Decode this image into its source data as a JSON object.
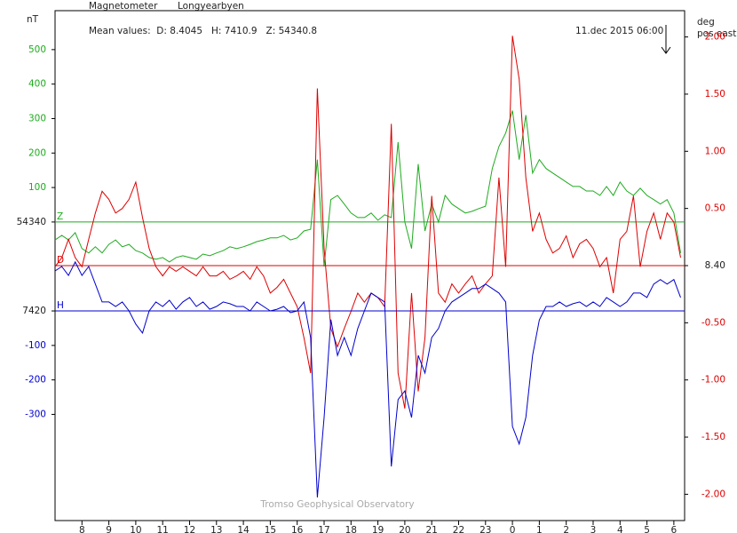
{
  "chart_data": {
    "type": "line",
    "title": "Magnetometer",
    "subtitle": "Longyearbyen",
    "mean_values": "Mean values:  D: 8.4045   H: 7410.9   Z: 54340.8",
    "timestamp": "11.dec 2015 06:00",
    "ylabel": "nT",
    "y2label": "deg",
    "y2label_note": "pos east",
    "credit": "Tromso Geophysical Observatory",
    "xlim": [
      7,
      30.4
    ],
    "xticks": [
      8,
      9,
      10,
      11,
      12,
      13,
      14,
      15,
      16,
      17,
      18,
      19,
      20,
      21,
      22,
      23,
      {
        "value": 24,
        "label": "0"
      },
      {
        "value": 25,
        "label": "1"
      },
      {
        "value": 26,
        "label": "2"
      },
      {
        "value": 27,
        "label": "3"
      },
      {
        "value": 28,
        "label": "4"
      },
      {
        "value": 29,
        "label": "5"
      },
      {
        "value": 30,
        "label": "6"
      }
    ],
    "ylim": [
      -866,
      613
    ],
    "yticks": [
      500,
      400,
      300,
      200,
      100,
      {
        "value": 0,
        "label": "54340"
      },
      {
        "value": -258,
        "label": "7420"
      },
      {
        "value": -358,
        "label": "-100"
      },
      {
        "value": -458,
        "label": "-200"
      },
      {
        "value": -558,
        "label": "-300"
      }
    ],
    "y2lim": [
      -2.23,
      2.23
    ],
    "y2ticks": [
      {
        "value": 2,
        "label": "2.00"
      },
      {
        "value": 1.5,
        "label": "1.50"
      },
      {
        "value": 1,
        "label": "1.00"
      },
      {
        "value": 0.5,
        "label": "0.50"
      },
      {
        "value": 0,
        "label": "8.40"
      },
      {
        "value": -0.5,
        "label": "-0.50"
      },
      {
        "value": -1,
        "label": "-1.00"
      },
      {
        "value": -1.5,
        "label": "-1.50"
      },
      {
        "value": -2,
        "label": "-2.00"
      }
    ],
    "x": [
      7,
      7.25,
      7.5,
      7.75,
      8,
      8.25,
      8.5,
      8.75,
      9,
      9.25,
      9.5,
      9.75,
      10,
      10.25,
      10.5,
      10.75,
      11,
      11.25,
      11.5,
      11.75,
      12,
      12.25,
      12.5,
      12.75,
      13,
      13.25,
      13.5,
      13.75,
      14,
      14.25,
      14.5,
      14.75,
      15,
      15.25,
      15.5,
      15.75,
      16,
      16.25,
      16.5,
      16.75,
      17,
      17.25,
      17.5,
      17.75,
      18,
      18.25,
      18.5,
      18.75,
      19,
      19.25,
      19.5,
      19.75,
      20,
      20.25,
      20.5,
      20.75,
      21,
      21.25,
      21.5,
      21.75,
      22,
      22.25,
      22.5,
      22.75,
      23,
      23.25,
      23.5,
      23.75,
      24,
      24.25,
      24.5,
      24.75,
      25,
      25.25,
      25.5,
      25.75,
      26,
      26.25,
      26.5,
      26.75,
      27,
      27.25,
      27.5,
      27.75,
      28,
      28.25,
      28.5,
      28.75,
      29,
      29.25,
      29.5,
      29.75,
      30,
      30.25
    ],
    "series": [
      {
        "name": "Z",
        "color": "#1faa1f",
        "axis": "y",
        "baseline": 0,
        "values": [
          -52,
          -39,
          -52,
          -31,
          -77,
          -90,
          -72,
          -90,
          -65,
          -52,
          -72,
          -65,
          -83,
          -90,
          -103,
          -108,
          -103,
          -116,
          -103,
          -98,
          -103,
          -108,
          -93,
          -98,
          -90,
          -83,
          -72,
          -77,
          -72,
          -65,
          -57,
          -52,
          -46,
          -46,
          -39,
          -52,
          -46,
          -26,
          -21,
          181,
          -129,
          65,
          77,
          52,
          26,
          13,
          13,
          26,
          5,
          21,
          13,
          232,
          0,
          -77,
          168,
          -26,
          52,
          0,
          77,
          52,
          39,
          26,
          31,
          39,
          46,
          155,
          219,
          258,
          323,
          181,
          310,
          142,
          181,
          155,
          142,
          129,
          116,
          103,
          103,
          90,
          90,
          77,
          103,
          77,
          116,
          90,
          77,
          98,
          77,
          65,
          52,
          65,
          26,
          -90
        ]
      },
      {
        "name": "D",
        "color": "#dd0000",
        "axis": "y2",
        "baseline": 0,
        "values": [
          -0.01,
          0.07,
          0.23,
          0.07,
          -0.01,
          0.23,
          0.46,
          0.65,
          0.58,
          0.46,
          0.5,
          0.58,
          0.73,
          0.42,
          0.15,
          -0.01,
          -0.09,
          -0.01,
          -0.05,
          -0.01,
          -0.05,
          -0.09,
          -0.01,
          -0.09,
          -0.09,
          -0.05,
          -0.12,
          -0.09,
          -0.05,
          -0.12,
          -0.01,
          -0.09,
          -0.24,
          -0.19,
          -0.12,
          -0.24,
          -0.36,
          -0.63,
          -0.94,
          1.55,
          0.15,
          -0.55,
          -0.71,
          -0.55,
          -0.4,
          -0.24,
          -0.32,
          -0.24,
          -0.28,
          -0.36,
          1.24,
          -0.94,
          -1.25,
          -0.24,
          -1.1,
          -0.63,
          0.61,
          -0.24,
          -0.32,
          -0.16,
          -0.24,
          -0.16,
          -0.09,
          -0.24,
          -0.16,
          -0.09,
          0.77,
          -0.01,
          2.01,
          1.63,
          0.77,
          0.3,
          0.46,
          0.23,
          0.11,
          0.15,
          0.26,
          0.07,
          0.19,
          0.23,
          0.15,
          -0.01,
          0.07,
          -0.24,
          0.23,
          0.3,
          0.61,
          -0.01,
          0.3,
          0.46,
          0.23,
          0.46,
          0.38,
          0.07
        ]
      },
      {
        "name": "H",
        "color": "#0000cc",
        "axis": "y",
        "baseline": -258,
        "values": [
          -142,
          -129,
          -155,
          -116,
          -155,
          -129,
          -180,
          -232,
          -232,
          -245,
          -232,
          -258,
          -296,
          -322,
          -258,
          -232,
          -245,
          -227,
          -253,
          -232,
          -219,
          -245,
          -232,
          -253,
          -245,
          -232,
          -237,
          -245,
          -245,
          -258,
          -232,
          -245,
          -258,
          -253,
          -245,
          -263,
          -258,
          -232,
          -335,
          -799,
          -567,
          -283,
          -387,
          -335,
          -387,
          -309,
          -258,
          -206,
          -219,
          -232,
          -709,
          -515,
          -490,
          -567,
          -387,
          -438,
          -335,
          -309,
          -258,
          -232,
          -219,
          -206,
          -193,
          -193,
          -180,
          -193,
          -206,
          -232,
          -593,
          -644,
          -567,
          -387,
          -284,
          -245,
          -245,
          -232,
          -245,
          -237,
          -232,
          -245,
          -232,
          -245,
          -219,
          -232,
          -245,
          -232,
          -206,
          -206,
          -219,
          -180,
          -167,
          -180,
          -167,
          -219
        ]
      }
    ]
  }
}
